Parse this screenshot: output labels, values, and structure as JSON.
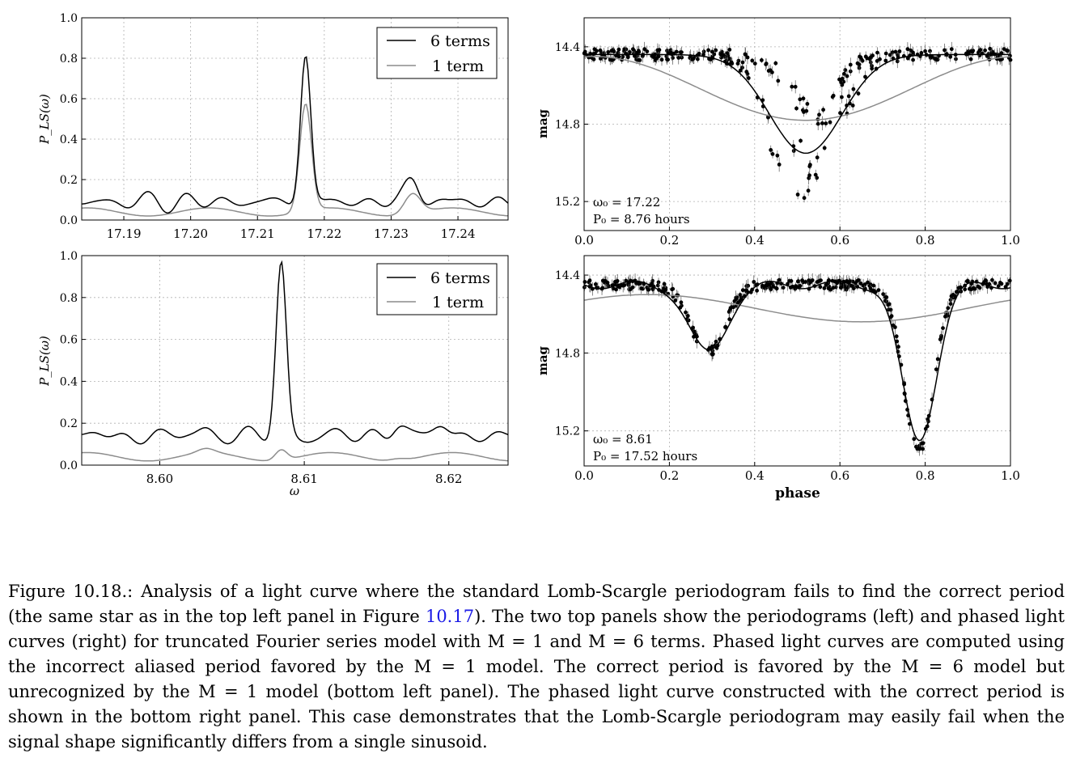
{
  "figure": {
    "panels": {
      "top_left": {
        "ylabel": "P_LS(ω)",
        "yticks": [
          "0.0",
          "0.2",
          "0.4",
          "0.6",
          "0.8",
          "1.0"
        ],
        "xticks": [
          "17.19",
          "17.20",
          "17.21",
          "17.22",
          "17.23",
          "17.24"
        ],
        "legend": [
          "6 terms",
          "1 term"
        ]
      },
      "bottom_left": {
        "ylabel": "P_LS(ω)",
        "xlabel": "ω",
        "yticks": [
          "0.0",
          "0.2",
          "0.4",
          "0.6",
          "0.8",
          "1.0"
        ],
        "xticks": [
          "8.60",
          "8.61",
          "8.62"
        ],
        "legend": [
          "6 terms",
          "1 term"
        ]
      },
      "top_right": {
        "ylabel": "mag",
        "yticks": [
          "14.4",
          "14.8",
          "15.2"
        ],
        "xticks": [
          "0.0",
          "0.2",
          "0.4",
          "0.6",
          "0.8",
          "1.0"
        ],
        "annotation_omega": "ω₀ = 17.22",
        "annotation_period": "P₀ = 8.76 hours"
      },
      "bottom_right": {
        "ylabel": "mag",
        "xlabel": "phase",
        "yticks": [
          "14.4",
          "14.8",
          "15.2"
        ],
        "xticks": [
          "0.0",
          "0.2",
          "0.4",
          "0.6",
          "0.8",
          "1.0"
        ],
        "annotation_omega": "ω₀ = 8.61",
        "annotation_period": "P₀ = 17.52 hours"
      }
    }
  },
  "chart_data": [
    {
      "type": "line",
      "panel": "top_left",
      "ylim": [
        0,
        1
      ],
      "xlim": [
        17.1837,
        17.2475
      ],
      "grid": true,
      "legend_placement": "top-right",
      "series": [
        {
          "name": "6 terms",
          "color": "#000000",
          "peak_x": 17.2172,
          "peak_y": 0.82,
          "secondary_peak_x": 17.2332,
          "secondary_peak_y": 0.22,
          "baseline": 0.09
        },
        {
          "name": "1 term",
          "color": "#8c8c8c",
          "peak_x": 17.2172,
          "peak_y": 0.57,
          "secondary_peak_x": 17.2332,
          "secondary_peak_y": 0.15,
          "baseline": 0.04
        }
      ]
    },
    {
      "type": "line",
      "panel": "bottom_left",
      "ylim": [
        0,
        1
      ],
      "xlim": [
        8.5946,
        8.6241
      ],
      "grid": true,
      "legend_placement": "top-right",
      "series": [
        {
          "name": "6 terms",
          "color": "#000000",
          "peak_x": 8.6084,
          "peak_y": 0.95,
          "baseline": 0.14
        },
        {
          "name": "1 term",
          "color": "#8c8c8c",
          "peak_x": 8.6084,
          "peak_y": 0.09,
          "baseline": 0.04
        }
      ]
    },
    {
      "type": "scatter",
      "panel": "top_right",
      "xlim": [
        0,
        1
      ],
      "ylim": [
        15.35,
        14.25
      ],
      "inverted_y": true,
      "grid": true,
      "model_6_terms": {
        "baseline_mag": 14.44,
        "min_phase": 0.52,
        "min_mag": 14.95
      },
      "model_1_term": {
        "baseline_mag": 14.45,
        "min_phase": 0.52,
        "min_mag": 14.78
      },
      "points": {
        "baseline_mag": 14.44,
        "dip_phase": 0.5,
        "dip_mag": 15.2
      }
    },
    {
      "type": "scatter",
      "panel": "bottom_right",
      "xlim": [
        0,
        1
      ],
      "ylim": [
        15.38,
        14.3
      ],
      "inverted_y": true,
      "grid": true,
      "model_6_terms": {
        "baseline_mag": 14.45,
        "dip1_phase": 0.29,
        "dip1_mag": 14.8,
        "dip2_phase": 0.785,
        "dip2_mag": 15.25
      },
      "model_1_term": {
        "baseline_mag": 14.5,
        "min_phase": 0.65,
        "min_mag": 14.64
      },
      "points": {
        "baseline_mag": 14.45,
        "dip1_phase": 0.29,
        "dip1_mag": 14.8,
        "dip2_phase": 0.785,
        "dip2_mag": 15.3
      }
    }
  ],
  "caption": {
    "label": "Figure 10.18.:",
    "part1": "Analysis of a light curve where the standard Lomb-Scargle periodogram fails to find the correct period (the same star as in the top left panel in Figure ",
    "ref": "10.17",
    "part2": "). The two top panels show the periodograms (left) and phased light curves (right) for truncated Fourier series model with M = 1 and M = 6 terms. Phased light curves are computed using the incorrect aliased period favored by the M = 1 model. The correct period is favored by the M = 6 model but unrecognized by the M = 1 model (bottom left panel). The phased light curve constructed with the correct period is shown in the bottom right panel. This case demonstrates that the Lomb-Scargle periodogram may easily fail when the signal shape significantly differs from a single sinusoid."
  }
}
